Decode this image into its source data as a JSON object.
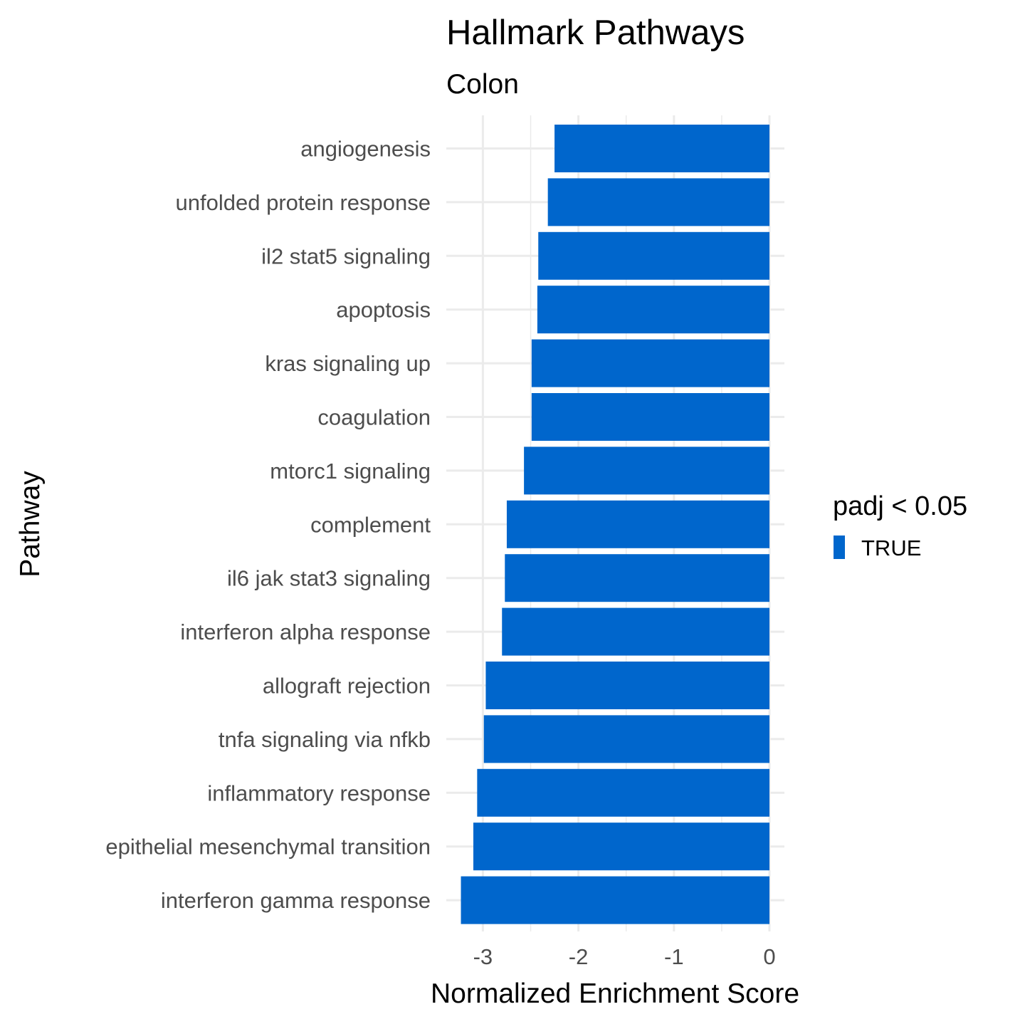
{
  "chart_data": {
    "type": "bar",
    "orientation": "horizontal",
    "title": "Hallmark Pathways",
    "subtitle": "Colon",
    "xlabel": "Normalized Enrichment Score",
    "ylabel": "Pathway",
    "xlim": [
      -3.3,
      0.15
    ],
    "x_ticks": [
      -3,
      -2,
      -1,
      0
    ],
    "x_tick_labels": [
      "-3",
      "-2",
      "-1",
      "0"
    ],
    "grid": true,
    "legend": {
      "title": "padj < 0.05",
      "position": "right",
      "items": [
        {
          "label": "TRUE",
          "color": "#0066cc"
        }
      ]
    },
    "bar_color": "#0066cc",
    "categories": [
      "angiogenesis",
      "unfolded protein response",
      "il2 stat5 signaling",
      "apoptosis",
      "kras signaling up",
      "coagulation",
      "mtorc1 signaling",
      "complement",
      "il6 jak stat3 signaling",
      "interferon alpha response",
      "allograft rejection",
      "tnfa signaling via nfkb",
      "inflammatory response",
      "epithelial mesenchymal transition",
      "interferon gamma response"
    ],
    "values": [
      -2.25,
      -2.32,
      -2.42,
      -2.43,
      -2.49,
      -2.49,
      -2.57,
      -2.75,
      -2.77,
      -2.8,
      -2.97,
      -2.99,
      -3.06,
      -3.1,
      -3.23
    ]
  }
}
